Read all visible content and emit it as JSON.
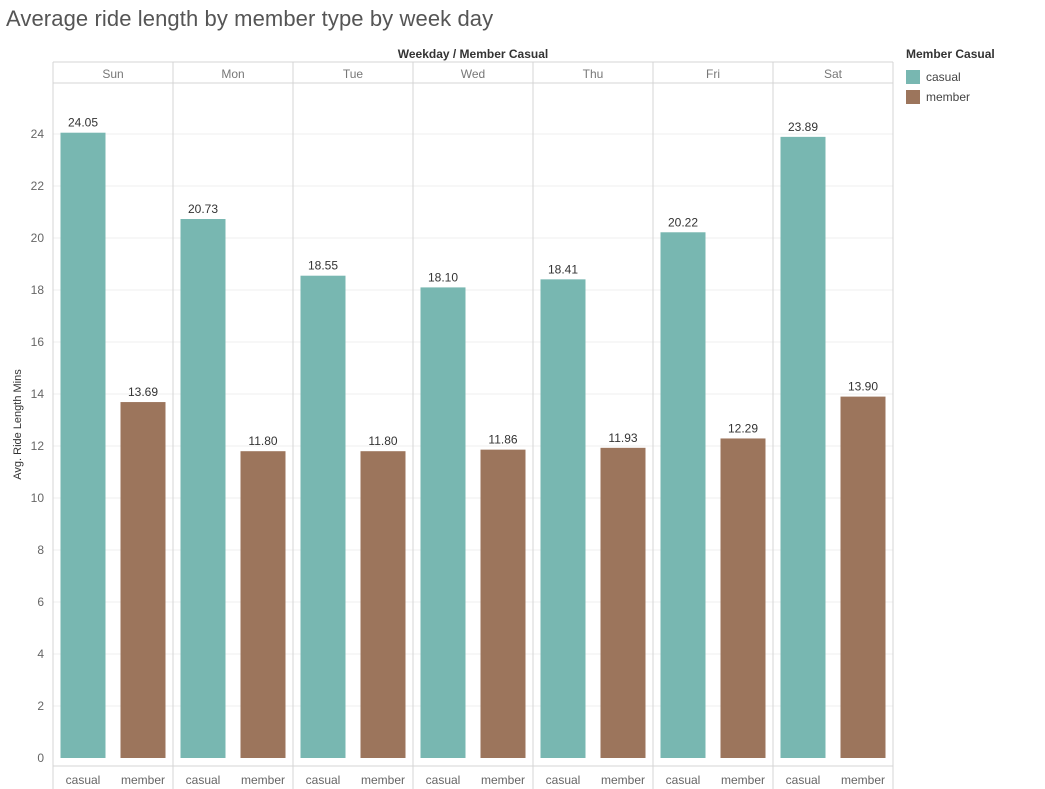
{
  "title": "Average ride length by member type by week day",
  "header_caption": "Weekday  /  Member Casual",
  "legend": {
    "title": "Member Casual",
    "items": [
      {
        "label": "casual",
        "color": "#78b7b1"
      },
      {
        "label": "member",
        "color": "#9c755c"
      }
    ]
  },
  "chart_data": {
    "type": "bar",
    "title": "Average ride length by member type by week day",
    "xlabel": "",
    "ylabel": "Avg. Ride Length Mins",
    "ylim": [
      0,
      26
    ],
    "yticks": [
      0,
      2,
      4,
      6,
      8,
      10,
      12,
      14,
      16,
      18,
      20,
      22,
      24
    ],
    "grid": true,
    "legend_position": "right",
    "column_headers": [
      "Sun",
      "Mon",
      "Tue",
      "Wed",
      "Thu",
      "Fri",
      "Sat"
    ],
    "subcategories": [
      "casual",
      "member"
    ],
    "colors": {
      "casual": "#78b7b1",
      "member": "#9c755c"
    },
    "series": [
      {
        "name": "casual",
        "values": [
          24.05,
          20.73,
          18.55,
          18.1,
          18.41,
          20.22,
          23.89
        ]
      },
      {
        "name": "member",
        "values": [
          13.69,
          11.8,
          11.8,
          11.86,
          11.93,
          12.29,
          13.9
        ]
      }
    ],
    "value_labels": {
      "casual": [
        "24.05",
        "20.73",
        "18.55",
        "18.10",
        "18.41",
        "20.22",
        "23.89"
      ],
      "member": [
        "13.69",
        "11.80",
        "11.80",
        "11.86",
        "11.93",
        "12.29",
        "13.90"
      ]
    }
  }
}
